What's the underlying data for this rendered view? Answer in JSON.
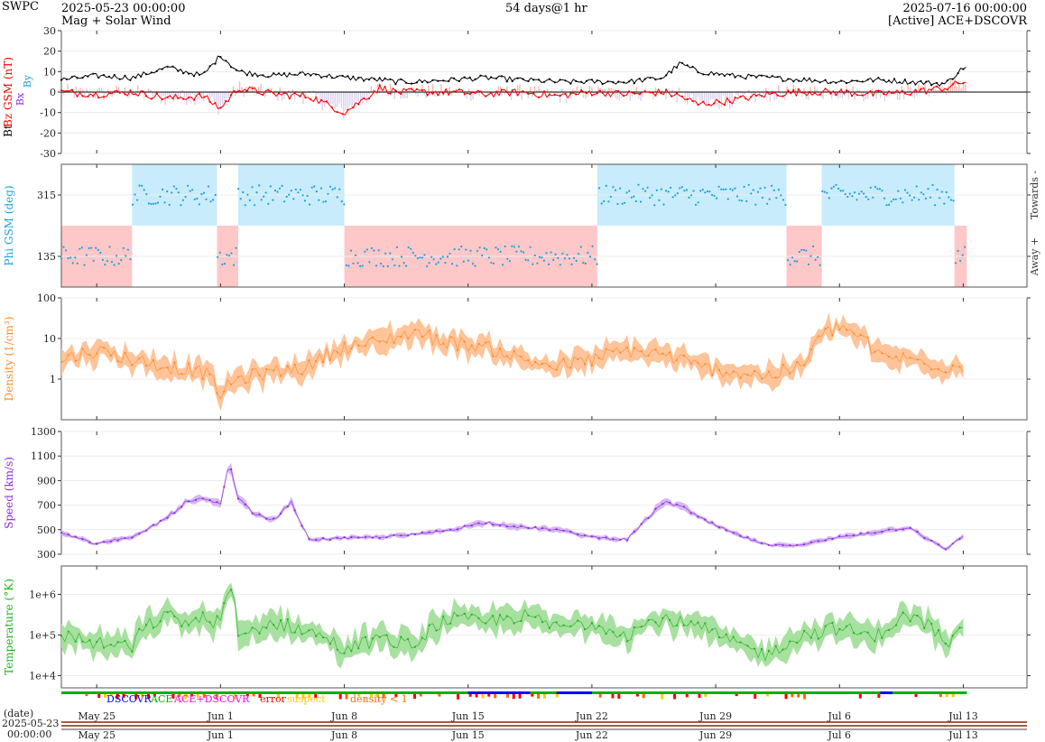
{
  "header": {
    "org": "SWPC",
    "start": "2025-05-23 00:00:00",
    "product": "Mag + Solar Wind",
    "span": "54 days@1 hr",
    "end": "2025-07-16 00:00:00",
    "source": "[Active] ACE+DSCOVR"
  },
  "colors": {
    "bt": "#000000",
    "bz": "#ff0000",
    "bz_fill_pos": "#ffb3b3",
    "bz_fill_neg": "#ddd0ee",
    "towards": "#c8ecfb",
    "away": "#ffc8c8",
    "phi": "#1aa0e0",
    "density": "#ff8c2a",
    "density_fill": "#ffc499",
    "speed": "#8a2be2",
    "speed_fill": "#d8b8f2",
    "temp": "#1fb41f",
    "temp_fill": "#a8e0a0",
    "dscovr": "#0000ff",
    "ace": "#00b000",
    "ace_dscovr": "#ff00ff",
    "error": "#ff0000",
    "suspect": "#ffcc00",
    "density_lt1": "#ff6a00"
  },
  "chart_data": [
    {
      "type": "line",
      "name": "mag",
      "ylabels": [
        "Bt",
        "Bz GSM (nT)"
      ],
      "legend_icons": [
        "Bx",
        "By"
      ],
      "ylim": [
        -30,
        30
      ],
      "yticks": [
        -30,
        -20,
        -10,
        0,
        10,
        20,
        30
      ],
      "series": [
        {
          "name": "Bt",
          "x": [
            0,
            2,
            4,
            6,
            8,
            9,
            10,
            12,
            14,
            16,
            18,
            19,
            20,
            22,
            24,
            26,
            28,
            30,
            32,
            34,
            35,
            36,
            38,
            40,
            42,
            44,
            46,
            48,
            50,
            51,
            52,
            53,
            54
          ],
          "values": [
            6,
            8,
            7,
            12,
            8,
            18,
            10,
            8,
            9,
            7,
            6,
            5,
            5,
            6,
            7,
            6,
            5,
            5,
            5,
            7,
            14,
            10,
            8,
            7,
            6,
            5,
            6,
            5,
            4,
            12,
            12,
            12,
            12
          ]
        },
        {
          "name": "Bz",
          "x": [
            0,
            2,
            4,
            6,
            8,
            9,
            10,
            12,
            14,
            16,
            18,
            19,
            20,
            22,
            24,
            26,
            28,
            30,
            32,
            34,
            35,
            36,
            38,
            40,
            42,
            44,
            46,
            48,
            50,
            51,
            52,
            53,
            54
          ],
          "values": [
            0,
            -1,
            0,
            -3,
            -2,
            -8,
            2,
            -1,
            -2,
            -10,
            2,
            0,
            0,
            0,
            -1,
            0,
            -2,
            0,
            -1,
            0,
            -2,
            -6,
            -4,
            -1,
            0,
            0,
            -1,
            0,
            2,
            5,
            5,
            4,
            4
          ]
        }
      ]
    },
    {
      "type": "scatter",
      "name": "phi",
      "ylabel": "Phi GSM (deg)",
      "right_labels": [
        "Towards -",
        "Away +"
      ],
      "ylim": [
        45,
        405
      ],
      "yticks": [
        135,
        315
      ],
      "sectors": [
        {
          "from": 0,
          "to": 4,
          "sector": "away"
        },
        {
          "from": 4,
          "to": 8.8,
          "sector": "towards"
        },
        {
          "from": 8.8,
          "to": 10,
          "sector": "away"
        },
        {
          "from": 10,
          "to": 16,
          "sector": "towards"
        },
        {
          "from": 16,
          "to": 30.3,
          "sector": "away"
        },
        {
          "from": 30.3,
          "to": 41,
          "sector": "towards"
        },
        {
          "from": 41,
          "to": 43,
          "sector": "away"
        },
        {
          "from": 43,
          "to": 50.5,
          "sector": "towards"
        },
        {
          "from": 50.5,
          "to": 54,
          "sector": "away"
        }
      ]
    },
    {
      "type": "line",
      "name": "density",
      "ylabel": "Density (1/cm³)",
      "scale": "log",
      "ylim": [
        0.1,
        100
      ],
      "yticks": [
        1,
        10,
        100
      ],
      "x": [
        0,
        2,
        4,
        6,
        8,
        9,
        10,
        12,
        14,
        16,
        18,
        20,
        21,
        22,
        24,
        26,
        28,
        30,
        32,
        34,
        36,
        38,
        40,
        42,
        44,
        46,
        48,
        50,
        52,
        54
      ],
      "values": [
        3,
        5,
        3,
        2,
        1.5,
        0.4,
        1,
        1.5,
        2,
        6,
        8,
        15,
        10,
        8,
        6,
        3,
        2,
        3,
        5,
        4,
        2,
        1.5,
        1.2,
        2,
        20,
        4,
        3,
        2,
        2,
        3
      ]
    },
    {
      "type": "line",
      "name": "speed",
      "ylabel": "Speed (km/s)",
      "ylim": [
        300,
        1300
      ],
      "yticks": [
        300,
        500,
        700,
        900,
        1100,
        1300
      ],
      "x": [
        0,
        2,
        3,
        4,
        6,
        7,
        8,
        9,
        9.5,
        10,
        11,
        12,
        13,
        14,
        16,
        18,
        20,
        22,
        24,
        26,
        28,
        30,
        32,
        34,
        35,
        36,
        38,
        40,
        42,
        44,
        46,
        48,
        49,
        50,
        51
      ],
      "values": [
        480,
        380,
        420,
        430,
        600,
        720,
        750,
        700,
        1050,
        750,
        620,
        580,
        720,
        420,
        430,
        440,
        460,
        500,
        560,
        520,
        500,
        440,
        420,
        720,
        700,
        600,
        470,
        370,
        380,
        440,
        480,
        520,
        420,
        340,
        450
      ]
    },
    {
      "type": "line",
      "name": "temperature",
      "ylabel": "Temperature (°K)",
      "scale": "log",
      "ylim": [
        5000,
        5000000
      ],
      "yticks": [
        "1e+4",
        "1e+5",
        "1e+6"
      ],
      "x": [
        0,
        2,
        4,
        6,
        7,
        8,
        9,
        9.5,
        10,
        12,
        14,
        16,
        18,
        20,
        22,
        24,
        26,
        28,
        30,
        32,
        34,
        36,
        38,
        40,
        42,
        44,
        46,
        48,
        50,
        51
      ],
      "values": [
        100000,
        60000,
        50000,
        300000,
        200000,
        250000,
        200000,
        1200000,
        80000,
        200000,
        120000,
        40000,
        80000,
        50000,
        250000,
        200000,
        300000,
        150000,
        200000,
        100000,
        250000,
        150000,
        60000,
        30000,
        100000,
        150000,
        80000,
        300000,
        50000,
        120000
      ]
    }
  ],
  "status_bar": {
    "legend": [
      {
        "label": "DSCOVR",
        "color_key": "dscovr"
      },
      {
        "label": "ACE",
        "color_key": "ace"
      },
      {
        "label": "ACE+DSCOVR",
        "color_key": "ace_dscovr"
      },
      {
        "label": "error",
        "color_key": "error"
      },
      {
        "label": "suspect",
        "color_key": "suspect"
      },
      {
        "label": "density < 1",
        "color_key": "density_lt1"
      }
    ]
  },
  "x_axis": {
    "date_label": "(date)",
    "start_date": "2025-05-23",
    "start_time": "00:00:00",
    "ticks": [
      {
        "day": 2,
        "label": "May 25"
      },
      {
        "day": 9,
        "label": "Jun 1"
      },
      {
        "day": 16,
        "label": "Jun 8"
      },
      {
        "day": 23,
        "label": "Jun 15"
      },
      {
        "day": 30,
        "label": "Jun 22"
      },
      {
        "day": 37,
        "label": "Jun 29"
      },
      {
        "day": 44,
        "label": "Jul 6"
      },
      {
        "day": 51,
        "label": "Jul 13"
      }
    ]
  }
}
